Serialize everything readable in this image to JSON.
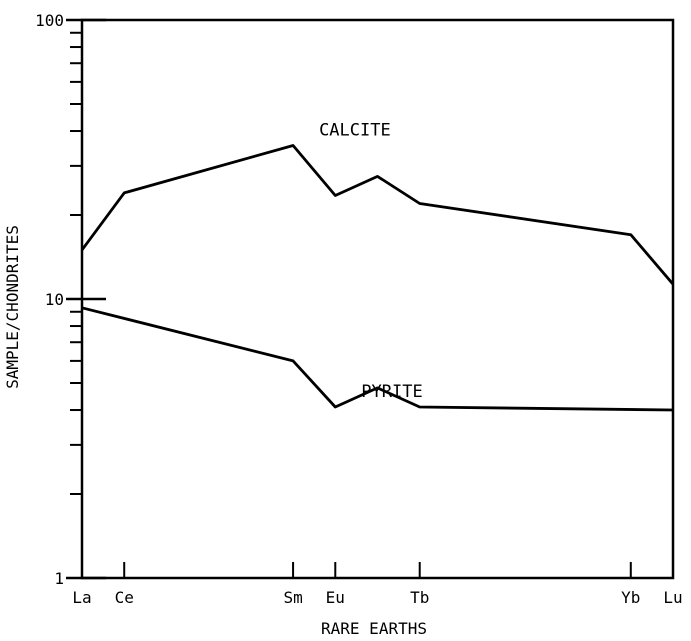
{
  "chart_data": {
    "type": "line",
    "title": "",
    "xlabel": "RARE EARTHS",
    "ylabel": "SAMPLE/CHONDRITES",
    "y_scale": "log",
    "ylim": [
      1,
      100
    ],
    "y_ticks": [
      {
        "value": 1,
        "label": "1"
      },
      {
        "value": 10,
        "label": "10"
      },
      {
        "value": 100,
        "label": "100"
      }
    ],
    "x_ticks": [
      {
        "label": "La",
        "x": 57
      },
      {
        "label": "Ce",
        "x": 58
      },
      {
        "label": "Sm",
        "x": 62
      },
      {
        "label": "Eu",
        "x": 63
      },
      {
        "label": "Tb",
        "x": 65
      },
      {
        "label": "Yb",
        "x": 70
      },
      {
        "label": "Lu",
        "x": 71
      }
    ],
    "xlim": [
      57,
      71
    ],
    "grid": false,
    "series": [
      {
        "name": "CALCITE",
        "points": [
          {
            "x": 57,
            "y": 15
          },
          {
            "x": 58,
            "y": 24
          },
          {
            "x": 62,
            "y": 35.5
          },
          {
            "x": 63,
            "y": 23.5
          },
          {
            "x": 64,
            "y": 27.5
          },
          {
            "x": 65,
            "y": 22
          },
          {
            "x": 70,
            "y": 17
          },
          {
            "x": 71,
            "y": 11.3
          }
        ]
      },
      {
        "name": "PYRITE",
        "points": [
          {
            "x": 57,
            "y": 9.3
          },
          {
            "x": 62,
            "y": 6.0
          },
          {
            "x": 63,
            "y": 4.1
          },
          {
            "x": 64,
            "y": 4.8
          },
          {
            "x": 65,
            "y": 4.1
          },
          {
            "x": 71,
            "y": 4.0
          }
        ]
      }
    ]
  }
}
